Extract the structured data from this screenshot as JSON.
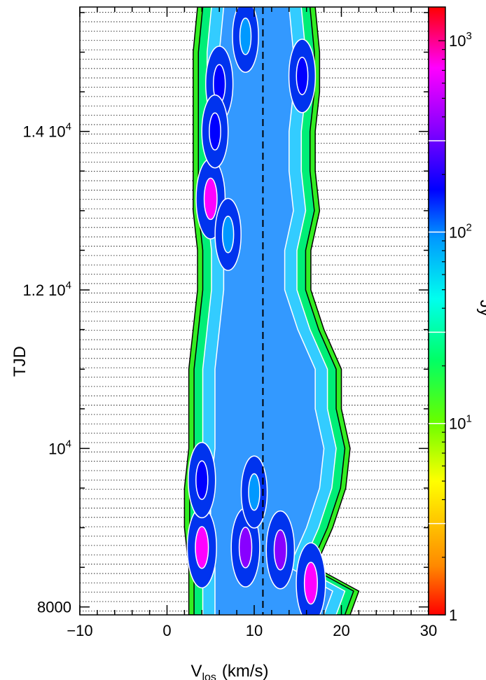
{
  "chart_data": {
    "type": "heatmap",
    "title": "",
    "xlabel_main": "V",
    "xlabel_sub": "los",
    "xlabel_units": "(km/s)",
    "ylabel": "TJD",
    "xlim": [
      -10,
      30
    ],
    "ylim": [
      7900,
      15570
    ],
    "x_ticks": [
      {
        "value": -10,
        "label": "−10"
      },
      {
        "value": 0,
        "label": "0"
      },
      {
        "value": 10,
        "label": "10"
      },
      {
        "value": 20,
        "label": "20"
      },
      {
        "value": 30,
        "label": "30"
      }
    ],
    "y_ticks": [
      {
        "value": 8000,
        "label": "8000",
        "sup": ""
      },
      {
        "value": 10000,
        "label": "10",
        "sup": "4"
      },
      {
        "value": 12000,
        "label": "1.2 10",
        "sup": "4"
      },
      {
        "value": 14000,
        "label": "1.4 10",
        "sup": "4"
      }
    ],
    "colorbar": {
      "label": "Jy",
      "scale": "log",
      "range": [
        1,
        1500
      ],
      "ticks": [
        {
          "value": 1,
          "label": "1",
          "sup": ""
        },
        {
          "value": 10,
          "label": "10",
          "sup": "1"
        },
        {
          "value": 100,
          "label": "10",
          "sup": "2"
        },
        {
          "value": 1000,
          "label": "10",
          "sup": "3"
        }
      ],
      "contour_levels": [
        3,
        10,
        30,
        100,
        300
      ]
    },
    "reference_line_x": 11,
    "emission_band": [
      {
        "tjd": 7900,
        "vmin": 2.5,
        "vmax": 21
      },
      {
        "tjd": 8200,
        "vmin": 2.5,
        "vmax": 22
      },
      {
        "tjd": 8500,
        "vmin": 2.5,
        "vmax": 17
      },
      {
        "tjd": 9000,
        "vmin": 2.0,
        "vmax": 19
      },
      {
        "tjd": 9500,
        "vmin": 2.0,
        "vmax": 20.5
      },
      {
        "tjd": 10000,
        "vmin": 2.5,
        "vmax": 21
      },
      {
        "tjd": 10500,
        "vmin": 2.5,
        "vmax": 20
      },
      {
        "tjd": 11000,
        "vmin": 2.5,
        "vmax": 20
      },
      {
        "tjd": 11500,
        "vmin": 3.0,
        "vmax": 18
      },
      {
        "tjd": 12000,
        "vmin": 3.5,
        "vmax": 16.5
      },
      {
        "tjd": 12500,
        "vmin": 3.5,
        "vmax": 16.5
      },
      {
        "tjd": 13000,
        "vmin": 3.0,
        "vmax": 17.5
      },
      {
        "tjd": 13500,
        "vmin": 3.0,
        "vmax": 17
      },
      {
        "tjd": 14000,
        "vmin": 3.0,
        "vmax": 17
      },
      {
        "tjd": 14500,
        "vmin": 3.0,
        "vmax": 17.5
      },
      {
        "tjd": 15000,
        "vmin": 3.0,
        "vmax": 17.5
      },
      {
        "tjd": 15570,
        "vmin": 3.5,
        "vmax": 17
      }
    ],
    "peaks": [
      {
        "v": 4.0,
        "tjd": 8750,
        "flux": 900
      },
      {
        "v": 9.0,
        "tjd": 8750,
        "flux": 600
      },
      {
        "v": 13.0,
        "tjd": 8720,
        "flux": 500
      },
      {
        "v": 16.5,
        "tjd": 8300,
        "flux": 900
      },
      {
        "v": 4.0,
        "tjd": 9600,
        "flux": 300
      },
      {
        "v": 10.0,
        "tjd": 9450,
        "flux": 150
      },
      {
        "v": 5.0,
        "tjd": 13150,
        "flux": 800
      },
      {
        "v": 6.0,
        "tjd": 14600,
        "flux": 300
      },
      {
        "v": 15.5,
        "tjd": 14700,
        "flux": 200
      },
      {
        "v": 9.0,
        "tjd": 15200,
        "flux": 150
      },
      {
        "v": 5.5,
        "tjd": 14000,
        "flux": 180
      },
      {
        "v": 7.0,
        "tjd": 12700,
        "flux": 150
      }
    ]
  }
}
